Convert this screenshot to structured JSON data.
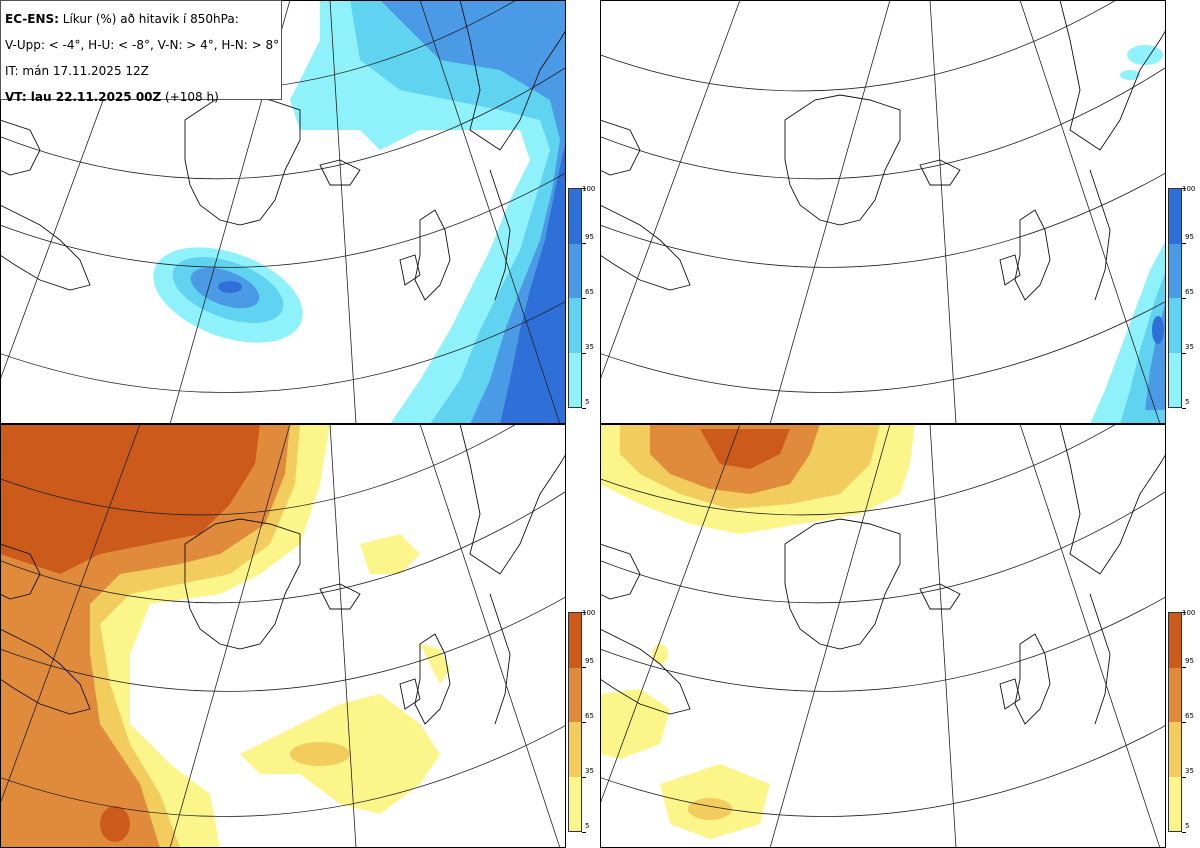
{
  "header": {
    "title_bold": "EC-ENS:",
    "title_rest": " Líkur (%) að hitavik í 850hPa:",
    "thresholds": "V-Upp: < -4°, H-U: < -8°, V-N: > 4°, H-N: > 8°",
    "initial_time": "IT: mán 17.11.2025 12Z",
    "valid_bold": "VT: lau 22.11.2025 00Z",
    "valid_rest": " (+108 h)"
  },
  "panels": [
    {
      "id": "upper-left",
      "label": "V-Upp",
      "threshold": "< -4°",
      "palette": "blue"
    },
    {
      "id": "upper-right",
      "label": "H-U",
      "threshold": "< -8°",
      "palette": "blue"
    },
    {
      "id": "lower-left",
      "label": "V-N",
      "threshold": "> 4°",
      "palette": "warm"
    },
    {
      "id": "lower-right",
      "label": "H-N",
      "threshold": "> 8°",
      "palette": "warm"
    }
  ],
  "colorbar": {
    "ticks": [
      "100",
      "95",
      "65",
      "35",
      "5"
    ],
    "blue_colors": [
      "#2e6fd8",
      "#4a9ae6",
      "#5fd3f0",
      "#8ff2fa"
    ],
    "warm_colors": [
      "#cc5a1a",
      "#e08a3c",
      "#f2cc5c",
      "#fbf58a"
    ]
  }
}
